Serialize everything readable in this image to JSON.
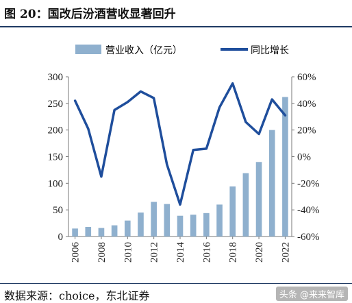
{
  "figure": {
    "title": "图 20：国改后汾酒营收显著回升",
    "source": "数据来源：choice，东北证券",
    "watermark": "头条 @来来智库"
  },
  "chart_data": {
    "type": "bar+line",
    "categories": [
      "2006",
      "2007",
      "2008",
      "2009",
      "2010",
      "2011",
      "2012",
      "2013",
      "2014",
      "2015",
      "2016",
      "2017",
      "2018",
      "2019",
      "2020",
      "2021",
      "2022"
    ],
    "x_tick_labels": [
      "2006",
      "2008",
      "2010",
      "2012",
      "2014",
      "2016",
      "2018",
      "2020",
      "2022"
    ],
    "series": [
      {
        "name": "营业收入（亿元）",
        "kind": "bar",
        "axis": "left",
        "color": "#8fb0ce",
        "values": [
          15,
          18,
          16,
          21,
          30,
          45,
          65,
          61,
          39,
          41,
          44,
          60,
          94,
          119,
          140,
          200,
          262
        ]
      },
      {
        "name": "同比增长",
        "kind": "line",
        "axis": "right",
        "color": "#1f4e9c",
        "values": [
          0.42,
          0.21,
          -0.15,
          0.35,
          0.41,
          0.49,
          0.44,
          -0.06,
          -0.36,
          0.05,
          0.06,
          0.37,
          0.55,
          0.26,
          0.17,
          0.43,
          0.31
        ]
      }
    ],
    "y_left": {
      "ylim": [
        0,
        300
      ],
      "ticks": [
        0,
        50,
        100,
        150,
        200,
        250,
        300
      ]
    },
    "y_right": {
      "ylim": [
        -0.6,
        0.6
      ],
      "ticks": [
        "-60%",
        "-40%",
        "-20%",
        "0%",
        "20%",
        "40%",
        "60%"
      ]
    },
    "legend": {
      "placement": "top",
      "entries": [
        "营业收入（亿元）",
        "同比增长"
      ]
    },
    "grid": false
  }
}
